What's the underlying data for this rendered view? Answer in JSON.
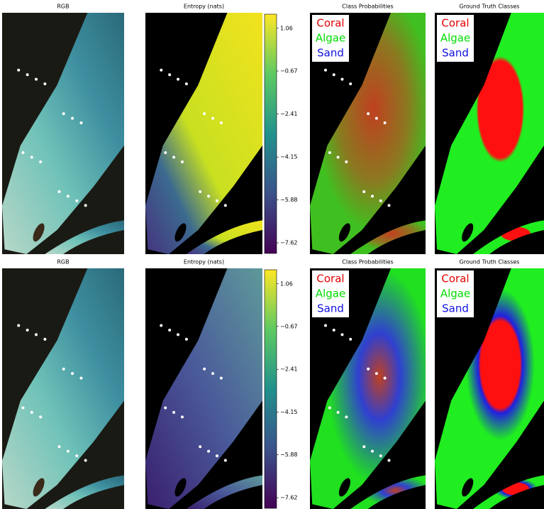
{
  "rows": [
    {
      "rgb_title": "RGB",
      "entropy_title": "Entropy (nats)",
      "colorbar": {
        "lim": [
          -8.05,
          1.63
        ],
        "ticks": [
          1.06,
          {
            "value": -0.67,
            "label": "−0.67"
          },
          {
            "value": -2.41,
            "label": "−2.41"
          },
          {
            "value": -4.15,
            "label": "−4.15"
          },
          {
            "value": -5.88,
            "label": "−5.88"
          },
          {
            "value": -7.62,
            "label": "−7.62"
          }
        ]
      },
      "prob_title": "Class Probabilities",
      "gt_title": "Ground Truth Classes",
      "legend": [
        {
          "name": "Coral",
          "color": "#e00000"
        },
        {
          "name": "Algae",
          "color": "#00dd00"
        },
        {
          "name": "Sand",
          "color": "#1010e0"
        }
      ]
    },
    {
      "rgb_title": "RGB",
      "entropy_title": "Entropy (nats)",
      "colorbar": {
        "lim": [
          -8.05,
          1.63
        ],
        "ticks": [
          1.06,
          {
            "value": -0.67,
            "label": "−0.67"
          },
          {
            "value": -2.41,
            "label": "−2.41"
          },
          {
            "value": -4.15,
            "label": "−4.15"
          },
          {
            "value": -5.88,
            "label": "−5.88"
          },
          {
            "value": -7.62,
            "label": "−7.62"
          }
        ]
      },
      "prob_title": "Class Probabilities",
      "gt_title": "Ground Truth Classes",
      "legend": [
        {
          "name": "Coral",
          "color": "#e00000"
        },
        {
          "name": "Algae",
          "color": "#00dd00"
        },
        {
          "name": "Sand",
          "color": "#1010e0"
        }
      ]
    }
  ]
}
